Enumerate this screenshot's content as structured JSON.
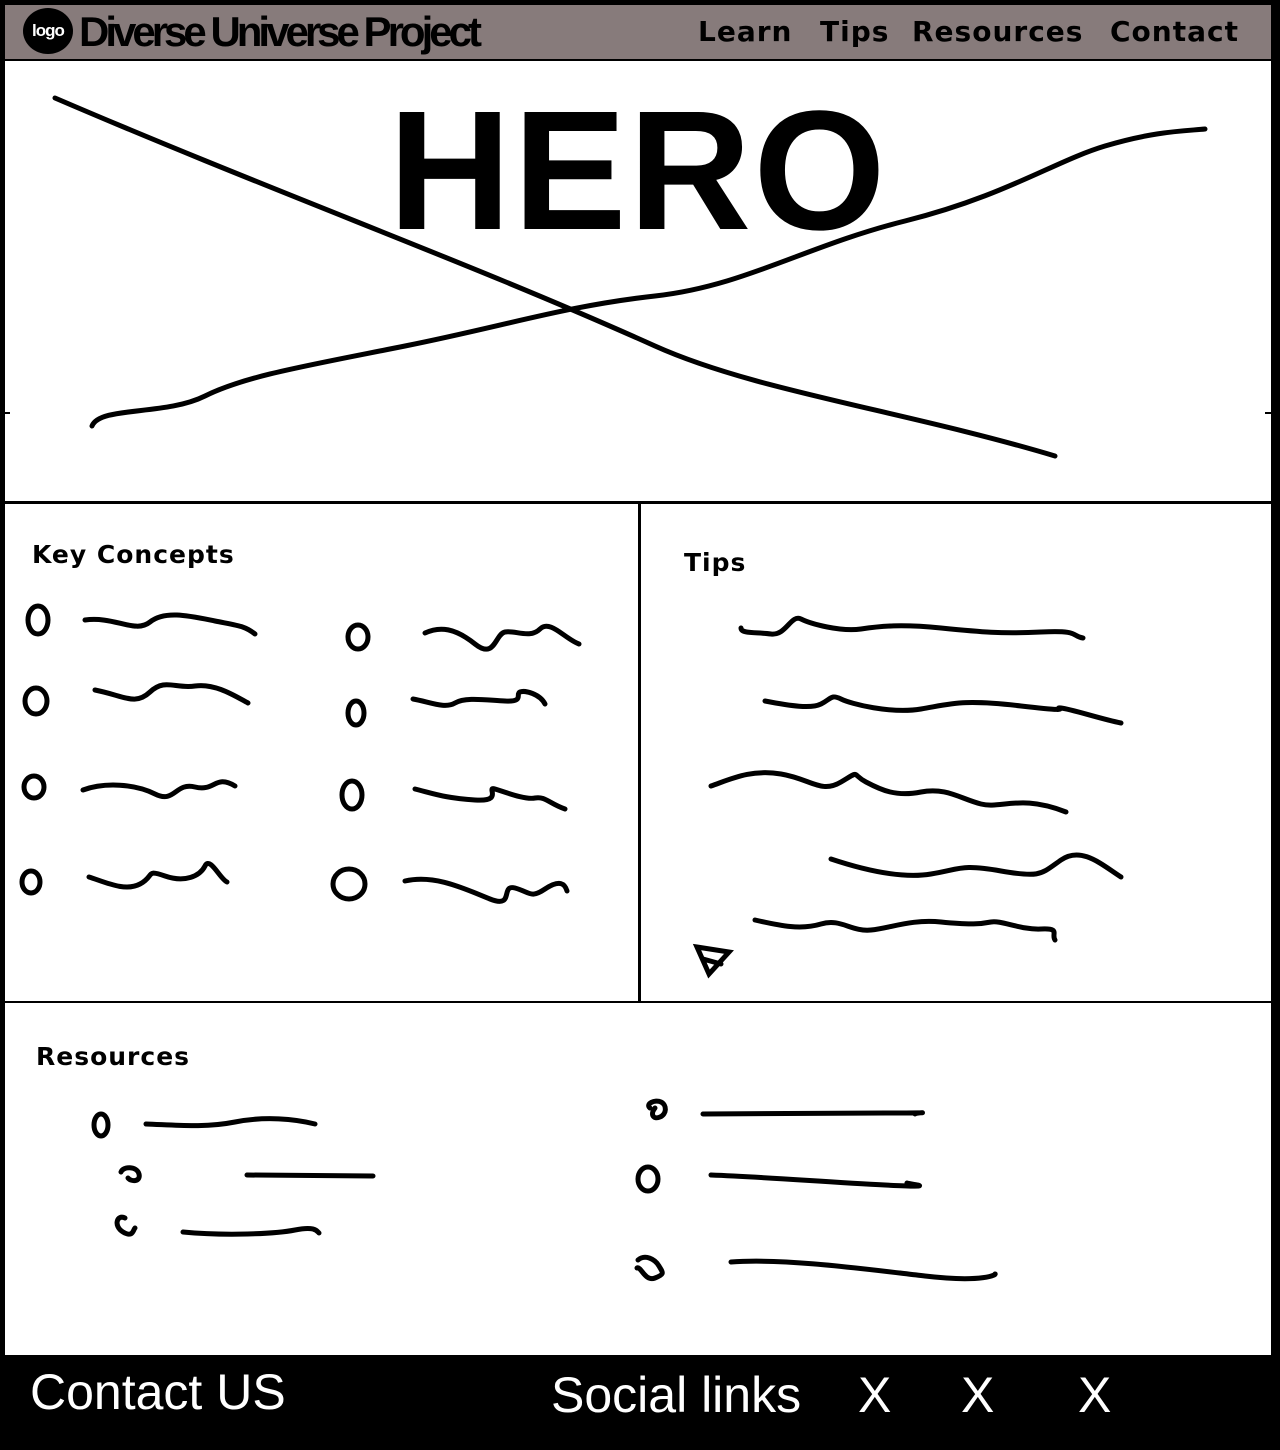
{
  "header": {
    "logo_text": "logo",
    "site_title": "Diverse Universe Project",
    "nav": [
      {
        "label": "Learn"
      },
      {
        "label": "Tips"
      },
      {
        "label": "Resources"
      },
      {
        "label": "Contact"
      }
    ]
  },
  "hero": {
    "title": "HERO"
  },
  "sections": {
    "key_concepts": {
      "title": "Key Concepts"
    },
    "tips": {
      "title": "Tips"
    },
    "resources": {
      "title": "Resources"
    }
  },
  "footer": {
    "contact": "Contact US",
    "social_label": "Social links",
    "social_icons": [
      "X",
      "X",
      "X"
    ]
  }
}
